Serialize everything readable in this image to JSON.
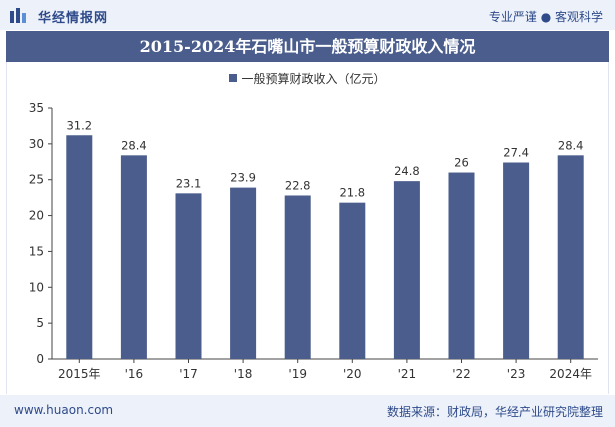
{
  "header": {
    "site_name": "华经情报网",
    "tagline": "专业严谨 ● 客观科学"
  },
  "footer": {
    "url": "www.huaon.com",
    "source": "数据来源：财政局，华经产业研究院整理"
  },
  "colors": {
    "bar": "#4a5d8c",
    "band": "#4a5d8c",
    "background_bar": "#edf2fa"
  },
  "chart_data": {
    "type": "bar",
    "title": "2015-2024年石嘴山市一般预算财政收入情况",
    "categories": [
      "2015年",
      "'16",
      "'17",
      "'18",
      "'19",
      "'20",
      "'21",
      "'22",
      "'23",
      "2024年"
    ],
    "series": [
      {
        "name": "一般预算财政收入（亿元）",
        "values": [
          31.2,
          28.4,
          23.1,
          23.9,
          22.8,
          21.8,
          24.8,
          26,
          27.4,
          28.4
        ]
      }
    ],
    "data_labels": [
      "31.2",
      "28.4",
      "23.1",
      "23.9",
      "22.8",
      "21.8",
      "24.8",
      "26",
      "27.4",
      "28.4"
    ],
    "xlabel": "",
    "ylabel": "",
    "ylim": [
      0,
      35
    ],
    "yticks": [
      0,
      5,
      10,
      15,
      20,
      25,
      30,
      35
    ],
    "grid": false,
    "legend_position": "top-center"
  }
}
